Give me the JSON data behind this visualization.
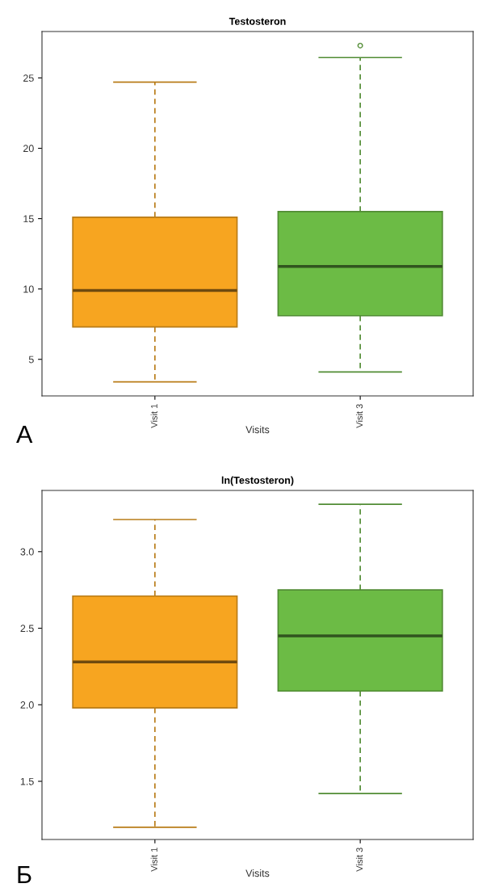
{
  "chart_data": [
    {
      "type": "box",
      "title": "Testosteron",
      "xlabel": "Visits",
      "categories": [
        "Visit 1",
        "Visit 3"
      ],
      "colors": [
        "#f7a520",
        "#6cbb45"
      ],
      "boxes": [
        {
          "low": 3.4,
          "q1": 7.3,
          "median": 9.9,
          "q3": 15.1,
          "high": 24.7
        },
        {
          "low": 4.1,
          "q1": 8.1,
          "median": 11.6,
          "q3": 15.5,
          "high": 26.45,
          "outliers": [
            27.3
          ]
        }
      ],
      "ylim": [
        2.4,
        28.3
      ],
      "yticks": [
        5,
        10,
        15,
        20,
        25
      ],
      "grid": false,
      "annotations": [
        "A"
      ]
    },
    {
      "type": "box",
      "title": "ln(Testosteron)",
      "xlabel": "Visits",
      "categories": [
        "Visit 1",
        "Visit 3"
      ],
      "colors": [
        "#f7a520",
        "#6cbb45"
      ],
      "boxes": [
        {
          "low": 1.2,
          "q1": 1.98,
          "median": 2.28,
          "q3": 2.71,
          "high": 3.21
        },
        {
          "low": 1.42,
          "q1": 2.09,
          "median": 2.45,
          "q3": 2.75,
          "high": 3.31
        }
      ],
      "ylim": [
        1.12,
        3.4
      ],
      "yticks": [
        {
          "value": 1.5,
          "label": "1.5"
        },
        {
          "value": 2.0,
          "label": "2.0"
        },
        {
          "value": 2.5,
          "label": "2.5"
        },
        {
          "value": 3.0,
          "label": "3.0"
        }
      ],
      "grid": false,
      "annotations": [
        "Б"
      ]
    }
  ]
}
